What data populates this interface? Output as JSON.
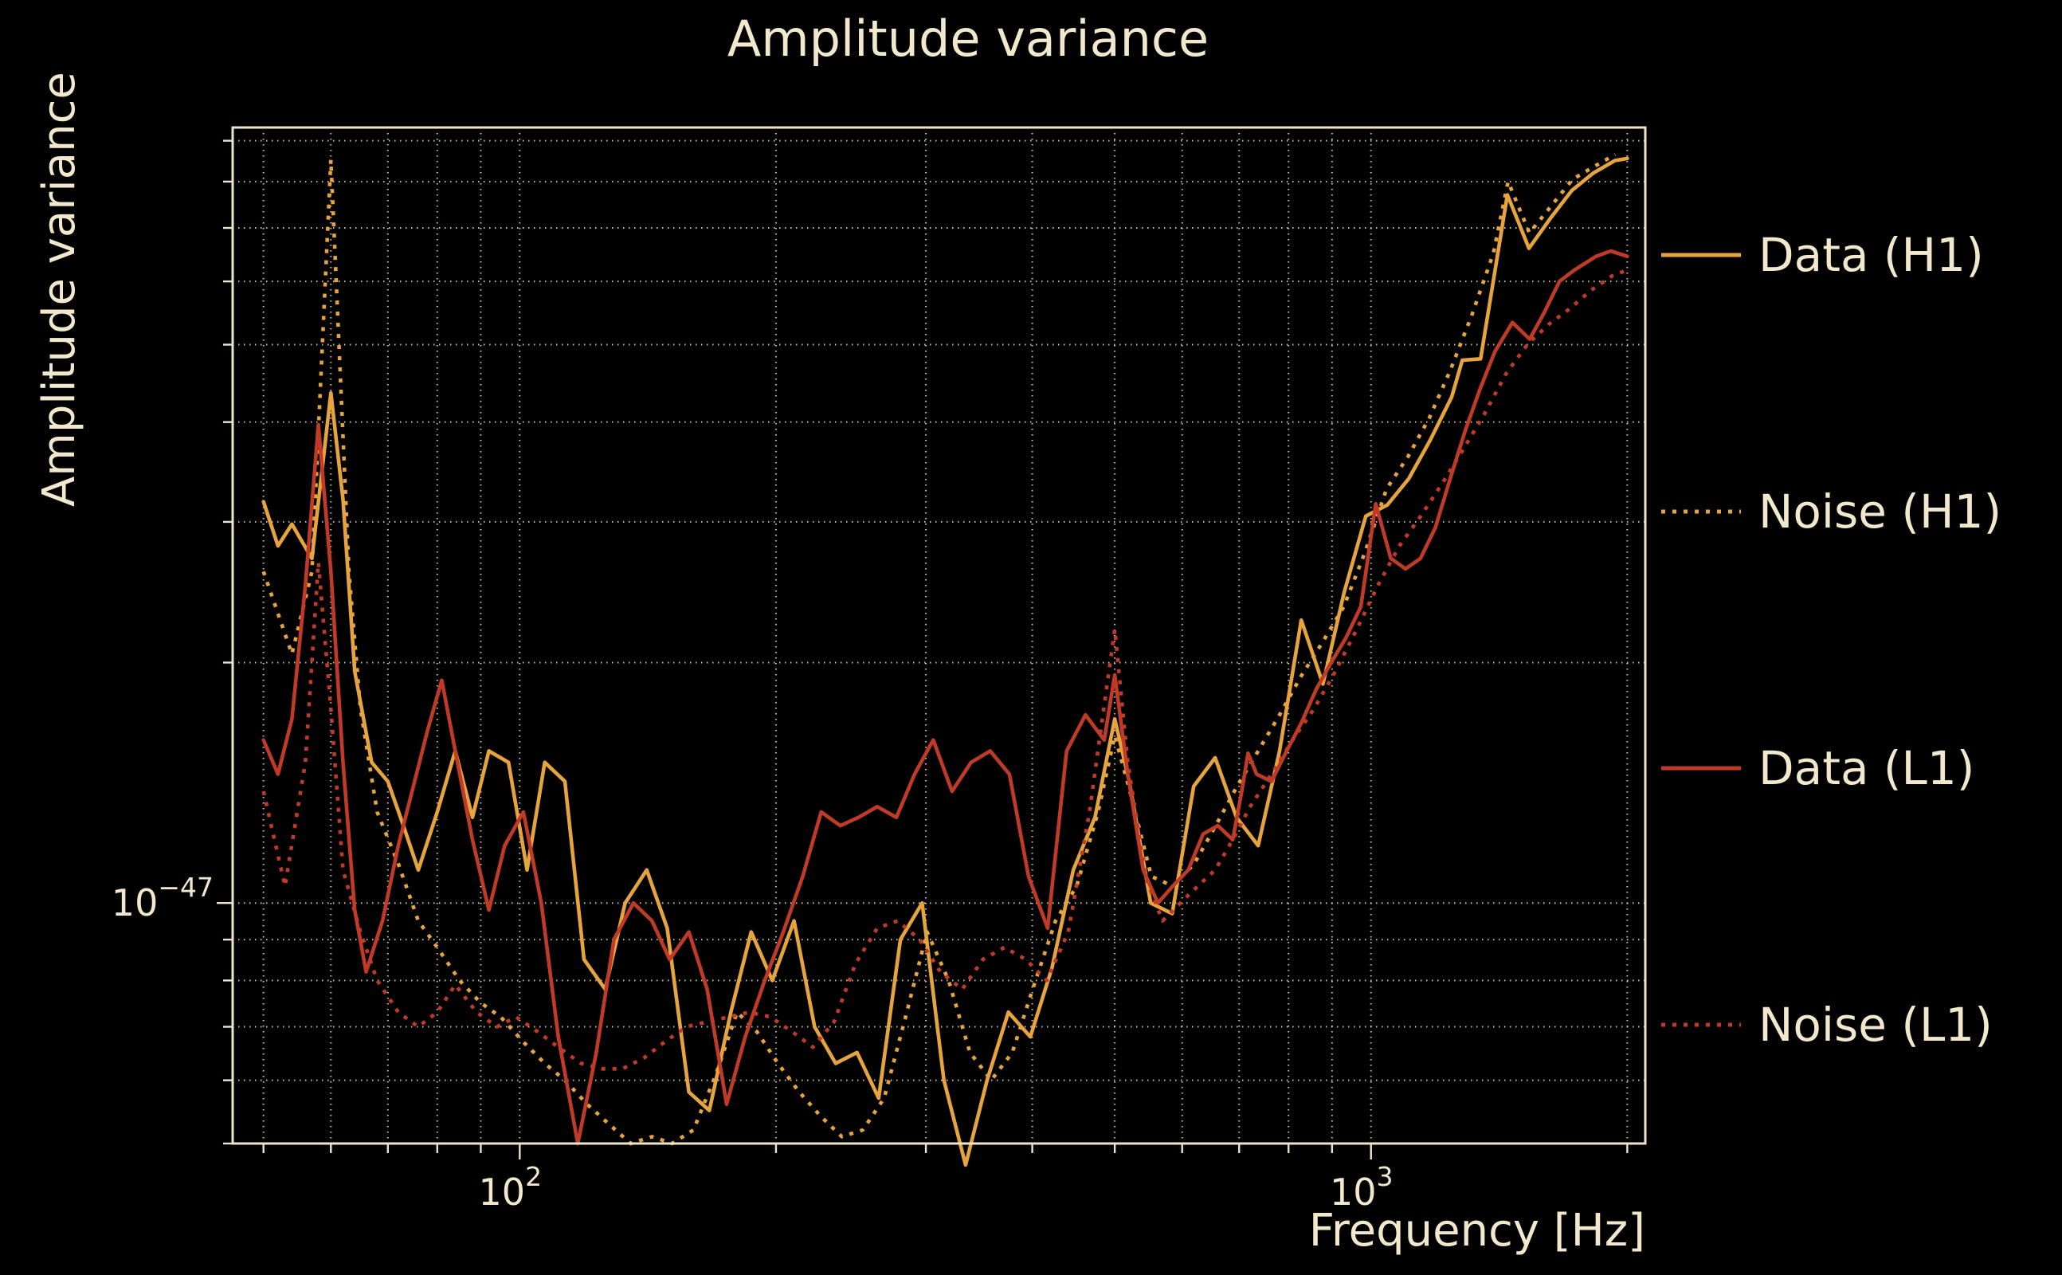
{
  "chart_data": {
    "type": "line",
    "title": "Amplitude variance",
    "xlabel": "Frequency [Hz]",
    "ylabel": "Amplitude variance",
    "legend_position": "right-outside",
    "colors": {
      "background": "#000000",
      "text": "#F2E8CD",
      "grid": "#EBE2C6",
      "spine": "#EDE4C9",
      "h1": "#E5A43D",
      "l1": "#C03A28"
    },
    "x_axis": {
      "scale": "log",
      "unit": "Hz",
      "min": 46,
      "max": 2100,
      "major_ticks": [
        {
          "value": 100,
          "base": "10",
          "exp": "2"
        },
        {
          "value": 1000,
          "base": "10",
          "exp": "3"
        }
      ],
      "gridlines": [
        50,
        60,
        70,
        80,
        90,
        100,
        200,
        300,
        400,
        500,
        600,
        700,
        800,
        900,
        1000,
        2000
      ]
    },
    "y_axis": {
      "scale": "log",
      "min": 5e-48,
      "max": 9.35e-47,
      "major_ticks": [
        {
          "value": 1e-47,
          "base": "10",
          "exp": "−47"
        }
      ],
      "gridlines": [
        5e-48,
        6e-48,
        7e-48,
        8e-48,
        9e-48,
        1e-47,
        2e-47,
        3e-47,
        4e-47,
        5e-47,
        6e-47,
        7e-47,
        8e-47,
        9e-47
      ]
    },
    "values_scaled_by": 1e-47,
    "series": [
      {
        "name": "Data (H1)",
        "color": "#E5A43D",
        "style": "solid",
        "points": [
          [
            50,
            3.18
          ],
          [
            52,
            2.8
          ],
          [
            54,
            2.98
          ],
          [
            57,
            2.7
          ],
          [
            60,
            4.35
          ],
          [
            62,
            3.2
          ],
          [
            64,
            1.95
          ],
          [
            67,
            1.5
          ],
          [
            70,
            1.42
          ],
          [
            73,
            1.25
          ],
          [
            76,
            1.1
          ],
          [
            80,
            1.3
          ],
          [
            84,
            1.55
          ],
          [
            88,
            1.28
          ],
          [
            92,
            1.55
          ],
          [
            97,
            1.5
          ],
          [
            102,
            1.1
          ],
          [
            107,
            1.5
          ],
          [
            113,
            1.42
          ],
          [
            119,
            0.85
          ],
          [
            126,
            0.78
          ],
          [
            133,
            1.0
          ],
          [
            141,
            1.1
          ],
          [
            149,
            0.93
          ],
          [
            158,
            0.58
          ],
          [
            167,
            0.55
          ],
          [
            177,
            0.73
          ],
          [
            187,
            0.92
          ],
          [
            198,
            0.8
          ],
          [
            210,
            0.95
          ],
          [
            222,
            0.7
          ],
          [
            235,
            0.63
          ],
          [
            249,
            0.65
          ],
          [
            264,
            0.57
          ],
          [
            280,
            0.9
          ],
          [
            297,
            1.0
          ],
          [
            315,
            0.6
          ],
          [
            334,
            0.47
          ],
          [
            354,
            0.6
          ],
          [
            375,
            0.73
          ],
          [
            398,
            0.68
          ],
          [
            422,
            0.83
          ],
          [
            447,
            1.1
          ],
          [
            474,
            1.28
          ],
          [
            500,
            1.7
          ],
          [
            520,
            1.42
          ],
          [
            551,
            1.0
          ],
          [
            584,
            0.97
          ],
          [
            619,
            1.4
          ],
          [
            656,
            1.52
          ],
          [
            695,
            1.28
          ],
          [
            737,
            1.18
          ],
          [
            781,
            1.55
          ],
          [
            828,
            2.26
          ],
          [
            878,
            1.88
          ],
          [
            930,
            2.45
          ],
          [
            986,
            3.05
          ],
          [
            1045,
            3.15
          ],
          [
            1108,
            3.4
          ],
          [
            1174,
            3.8
          ],
          [
            1244,
            4.3
          ],
          [
            1280,
            4.78
          ],
          [
            1345,
            4.8
          ],
          [
            1446,
            7.7
          ],
          [
            1533,
            6.6
          ],
          [
            1625,
            7.2
          ],
          [
            1722,
            7.8
          ],
          [
            1825,
            8.2
          ],
          [
            1934,
            8.5
          ],
          [
            2000,
            8.55
          ]
        ]
      },
      {
        "name": "Noise (H1)",
        "color": "#E5A43D",
        "style": "dotted",
        "points": [
          [
            50,
            2.6
          ],
          [
            54,
            2.05
          ],
          [
            57,
            2.6
          ],
          [
            60,
            8.52
          ],
          [
            63,
            2.6
          ],
          [
            65,
            1.75
          ],
          [
            68,
            1.3
          ],
          [
            72,
            1.12
          ],
          [
            76,
            0.95
          ],
          [
            80,
            0.88
          ],
          [
            85,
            0.8
          ],
          [
            90,
            0.75
          ],
          [
            95,
            0.72
          ],
          [
            101,
            0.67
          ],
          [
            107,
            0.63
          ],
          [
            113,
            0.6
          ],
          [
            120,
            0.56
          ],
          [
            127,
            0.53
          ],
          [
            135,
            0.5
          ],
          [
            143,
            0.51
          ],
          [
            151,
            0.5
          ],
          [
            160,
            0.52
          ],
          [
            170,
            0.61
          ],
          [
            180,
            0.73
          ],
          [
            190,
            0.69
          ],
          [
            201,
            0.63
          ],
          [
            213,
            0.58
          ],
          [
            226,
            0.54
          ],
          [
            239,
            0.51
          ],
          [
            253,
            0.52
          ],
          [
            268,
            0.57
          ],
          [
            284,
            0.72
          ],
          [
            301,
            0.92
          ],
          [
            319,
            0.8
          ],
          [
            338,
            0.65
          ],
          [
            358,
            0.6
          ],
          [
            379,
            0.65
          ],
          [
            402,
            0.79
          ],
          [
            426,
            0.95
          ],
          [
            451,
            1.05
          ],
          [
            478,
            1.3
          ],
          [
            500,
            1.62
          ],
          [
            521,
            1.38
          ],
          [
            552,
            1.08
          ],
          [
            585,
            1.05
          ],
          [
            620,
            1.12
          ],
          [
            657,
            1.25
          ],
          [
            696,
            1.4
          ],
          [
            737,
            1.55
          ],
          [
            781,
            1.72
          ],
          [
            827,
            1.92
          ],
          [
            877,
            2.12
          ],
          [
            929,
            2.35
          ],
          [
            984,
            2.75
          ],
          [
            1043,
            3.3
          ],
          [
            1105,
            3.62
          ],
          [
            1171,
            4.05
          ],
          [
            1240,
            4.65
          ],
          [
            1314,
            5.45
          ],
          [
            1392,
            6.5
          ],
          [
            1449,
            8.0
          ],
          [
            1535,
            6.9
          ],
          [
            1627,
            7.45
          ],
          [
            1724,
            8.05
          ],
          [
            1827,
            8.35
          ],
          [
            1936,
            8.65
          ]
        ]
      },
      {
        "name": "Data (L1)",
        "color": "#C03A28",
        "style": "solid",
        "points": [
          [
            50,
            1.6
          ],
          [
            52,
            1.45
          ],
          [
            54,
            1.7
          ],
          [
            56,
            2.5
          ],
          [
            58,
            3.97
          ],
          [
            60,
            2.6
          ],
          [
            62,
            1.5
          ],
          [
            64,
            0.98
          ],
          [
            66,
            0.82
          ],
          [
            69,
            0.95
          ],
          [
            72,
            1.18
          ],
          [
            75,
            1.4
          ],
          [
            78,
            1.65
          ],
          [
            81,
            1.9
          ],
          [
            84,
            1.55
          ],
          [
            88,
            1.2
          ],
          [
            92,
            0.98
          ],
          [
            96,
            1.18
          ],
          [
            101,
            1.3
          ],
          [
            106,
            1.0
          ],
          [
            111,
            0.68
          ],
          [
            117,
            0.5
          ],
          [
            123,
            0.65
          ],
          [
            129,
            0.9
          ],
          [
            136,
            1.0
          ],
          [
            143,
            0.95
          ],
          [
            150,
            0.85
          ],
          [
            158,
            0.92
          ],
          [
            166,
            0.78
          ],
          [
            175,
            0.56
          ],
          [
            184,
            0.68
          ],
          [
            194,
            0.8
          ],
          [
            204,
            0.92
          ],
          [
            215,
            1.08
          ],
          [
            226,
            1.3
          ],
          [
            238,
            1.25
          ],
          [
            250,
            1.28
          ],
          [
            263,
            1.32
          ],
          [
            277,
            1.28
          ],
          [
            291,
            1.45
          ],
          [
            306,
            1.6
          ],
          [
            322,
            1.38
          ],
          [
            339,
            1.5
          ],
          [
            357,
            1.55
          ],
          [
            376,
            1.45
          ],
          [
            396,
            1.08
          ],
          [
            417,
            0.93
          ],
          [
            439,
            1.55
          ],
          [
            462,
            1.72
          ],
          [
            486,
            1.6
          ],
          [
            500,
            1.93
          ],
          [
            518,
            1.45
          ],
          [
            540,
            1.1
          ],
          [
            562,
            1.0
          ],
          [
            585,
            1.05
          ],
          [
            610,
            1.1
          ],
          [
            635,
            1.22
          ],
          [
            661,
            1.25
          ],
          [
            688,
            1.2
          ],
          [
            705,
            1.38
          ],
          [
            717,
            1.54
          ],
          [
            734,
            1.45
          ],
          [
            764,
            1.42
          ],
          [
            796,
            1.55
          ],
          [
            828,
            1.68
          ],
          [
            862,
            1.85
          ],
          [
            898,
            2.0
          ],
          [
            935,
            2.15
          ],
          [
            973,
            2.35
          ],
          [
            1013,
            3.16
          ],
          [
            1055,
            2.7
          ],
          [
            1098,
            2.62
          ],
          [
            1143,
            2.7
          ],
          [
            1190,
            2.95
          ],
          [
            1239,
            3.4
          ],
          [
            1290,
            3.9
          ],
          [
            1343,
            4.4
          ],
          [
            1398,
            4.9
          ],
          [
            1466,
            5.33
          ],
          [
            1536,
            5.08
          ],
          [
            1600,
            5.5
          ],
          [
            1665,
            6.0
          ],
          [
            1733,
            6.2
          ],
          [
            1838,
            6.45
          ],
          [
            1913,
            6.55
          ],
          [
            2000,
            6.45
          ]
        ]
      },
      {
        "name": "Noise (L1)",
        "color": "#C03A28",
        "style": "dotted",
        "points": [
          [
            50,
            1.38
          ],
          [
            53,
            1.05
          ],
          [
            56,
            1.5
          ],
          [
            58,
            2.67
          ],
          [
            60,
            1.75
          ],
          [
            62,
            1.1
          ],
          [
            65,
            0.92
          ],
          [
            68,
            0.8
          ],
          [
            72,
            0.73
          ],
          [
            76,
            0.7
          ],
          [
            80,
            0.73
          ],
          [
            84,
            0.79
          ],
          [
            89,
            0.73
          ],
          [
            94,
            0.7
          ],
          [
            99,
            0.72
          ],
          [
            105,
            0.69
          ],
          [
            111,
            0.66
          ],
          [
            118,
            0.63
          ],
          [
            125,
            0.62
          ],
          [
            132,
            0.62
          ],
          [
            140,
            0.64
          ],
          [
            148,
            0.67
          ],
          [
            157,
            0.7
          ],
          [
            166,
            0.71
          ],
          [
            176,
            0.72
          ],
          [
            186,
            0.73
          ],
          [
            197,
            0.72
          ],
          [
            209,
            0.69
          ],
          [
            221,
            0.66
          ],
          [
            234,
            0.71
          ],
          [
            248,
            0.84
          ],
          [
            263,
            0.93
          ],
          [
            278,
            0.95
          ],
          [
            295,
            0.9
          ],
          [
            312,
            0.82
          ],
          [
            331,
            0.78
          ],
          [
            350,
            0.85
          ],
          [
            371,
            0.88
          ],
          [
            393,
            0.85
          ],
          [
            416,
            0.8
          ],
          [
            441,
            0.92
          ],
          [
            467,
            1.3
          ],
          [
            500,
            2.2
          ],
          [
            518,
            1.5
          ],
          [
            543,
            1.08
          ],
          [
            569,
            0.95
          ],
          [
            597,
            1.0
          ],
          [
            626,
            1.05
          ],
          [
            656,
            1.1
          ],
          [
            688,
            1.2
          ],
          [
            721,
            1.32
          ],
          [
            764,
            1.45
          ],
          [
            809,
            1.6
          ],
          [
            857,
            1.75
          ],
          [
            908,
            1.95
          ],
          [
            962,
            2.2
          ],
          [
            1019,
            2.5
          ],
          [
            1080,
            2.8
          ],
          [
            1144,
            3.05
          ],
          [
            1212,
            3.35
          ],
          [
            1284,
            3.7
          ],
          [
            1360,
            4.1
          ],
          [
            1441,
            4.6
          ],
          [
            1526,
            5.0
          ],
          [
            1617,
            5.3
          ],
          [
            1713,
            5.55
          ],
          [
            1814,
            5.85
          ],
          [
            1922,
            6.1
          ],
          [
            2000,
            6.2
          ]
        ]
      }
    ]
  }
}
